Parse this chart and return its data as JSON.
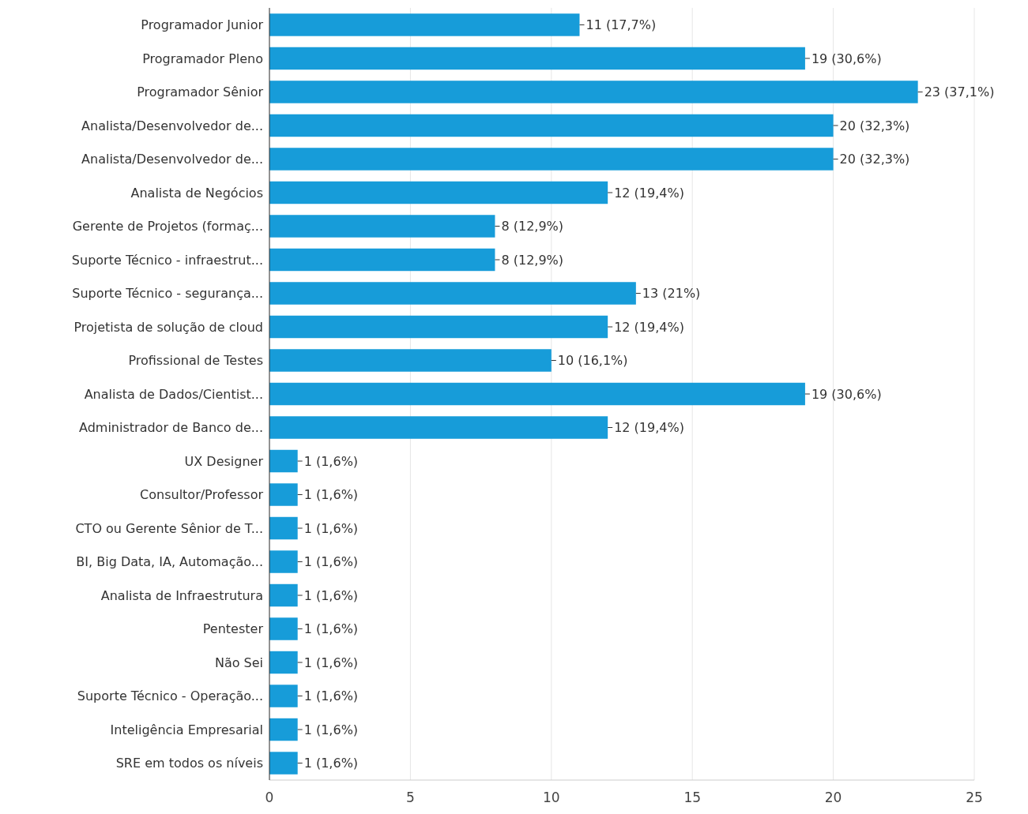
{
  "chart_data": {
    "type": "bar",
    "orientation": "horizontal",
    "categories": [
      "Programador Junior",
      "Programador Pleno",
      "Programador Sênior",
      "Analista/Desenvolvedor de...",
      "Analista/Desenvolvedor de...",
      "Analista de Negócios",
      "Gerente de Projetos (formaç...",
      "Suporte Técnico - infraestrut...",
      "Suporte Técnico - segurança...",
      "Projetista de solução de cloud",
      "Profissional de Testes",
      "Analista de Dados/Cientist...",
      "Administrador de Banco de...",
      "UX Designer",
      "Consultor/Professor",
      "CTO ou Gerente Sênior de T...",
      "BI, Big Data, IA, Automação...",
      "Analista de Infraestrutura",
      "Pentester",
      "Não Sei",
      "Suporte Técnico - Operação...",
      "Inteligência Empresarial",
      "SRE em todos os níveis"
    ],
    "values": [
      11,
      19,
      23,
      20,
      20,
      12,
      8,
      8,
      13,
      12,
      10,
      19,
      12,
      1,
      1,
      1,
      1,
      1,
      1,
      1,
      1,
      1,
      1
    ],
    "value_labels": [
      "11 (17,7%)",
      "19 (30,6%)",
      "23 (37,1%)",
      "20 (32,3%)",
      "20 (32,3%)",
      "12 (19,4%)",
      "8 (12,9%)",
      "8 (12,9%)",
      "13 (21%)",
      "12 (19,4%)",
      "10 (16,1%)",
      "19 (30,6%)",
      "12 (19,4%)",
      "1 (1,6%)",
      "1 (1,6%)",
      "1 (1,6%)",
      "1 (1,6%)",
      "1 (1,6%)",
      "1 (1,6%)",
      "1 (1,6%)",
      "1 (1,6%)",
      "1 (1,6%)",
      "1 (1,6%)"
    ],
    "color": "#179cd9",
    "xlim": [
      0,
      25
    ],
    "xticks": [
      0,
      5,
      10,
      15,
      20,
      25
    ],
    "grid": "x"
  }
}
